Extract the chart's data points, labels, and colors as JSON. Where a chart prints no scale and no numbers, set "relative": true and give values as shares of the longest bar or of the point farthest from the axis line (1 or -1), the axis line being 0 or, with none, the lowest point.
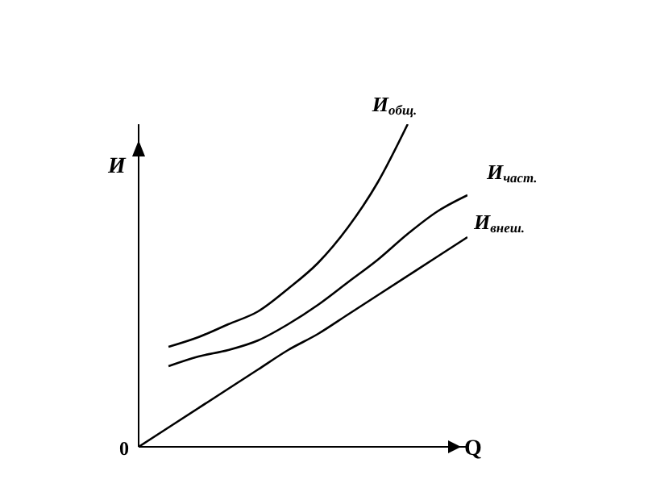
{
  "chart_data": {
    "type": "line",
    "relative": true,
    "xlabel": "Q",
    "ylabel": "И",
    "annotations": [
      "0"
    ],
    "legend": false,
    "marker": "none",
    "line_style": "solid",
    "grid": false,
    "categories": [
      null,
      null,
      null,
      null,
      null,
      null,
      null,
      null,
      null,
      null,
      null,
      null
    ],
    "series": [
      {
        "name": "И$_{общ.}$",
        "color": "#000000",
        "values": [
          null,
          0.31,
          0.34,
          0.38,
          0.42,
          0.49,
          0.57,
          0.68,
          0.82,
          1.0,
          null,
          null
        ]
      },
      {
        "name": "И$_{част.}$",
        "color": "#000000",
        "values": [
          null,
          0.25,
          0.28,
          0.3,
          0.33,
          0.38,
          0.44,
          0.51,
          0.58,
          0.66,
          0.73,
          0.78
        ]
      },
      {
        "name": "И$_{внеш.}$",
        "color": "#000000",
        "values": [
          0,
          0.06,
          0.12,
          0.18,
          0.24,
          0.3,
          0.35,
          0.41,
          0.47,
          0.53,
          0.59,
          0.65
        ]
      }
    ]
  }
}
